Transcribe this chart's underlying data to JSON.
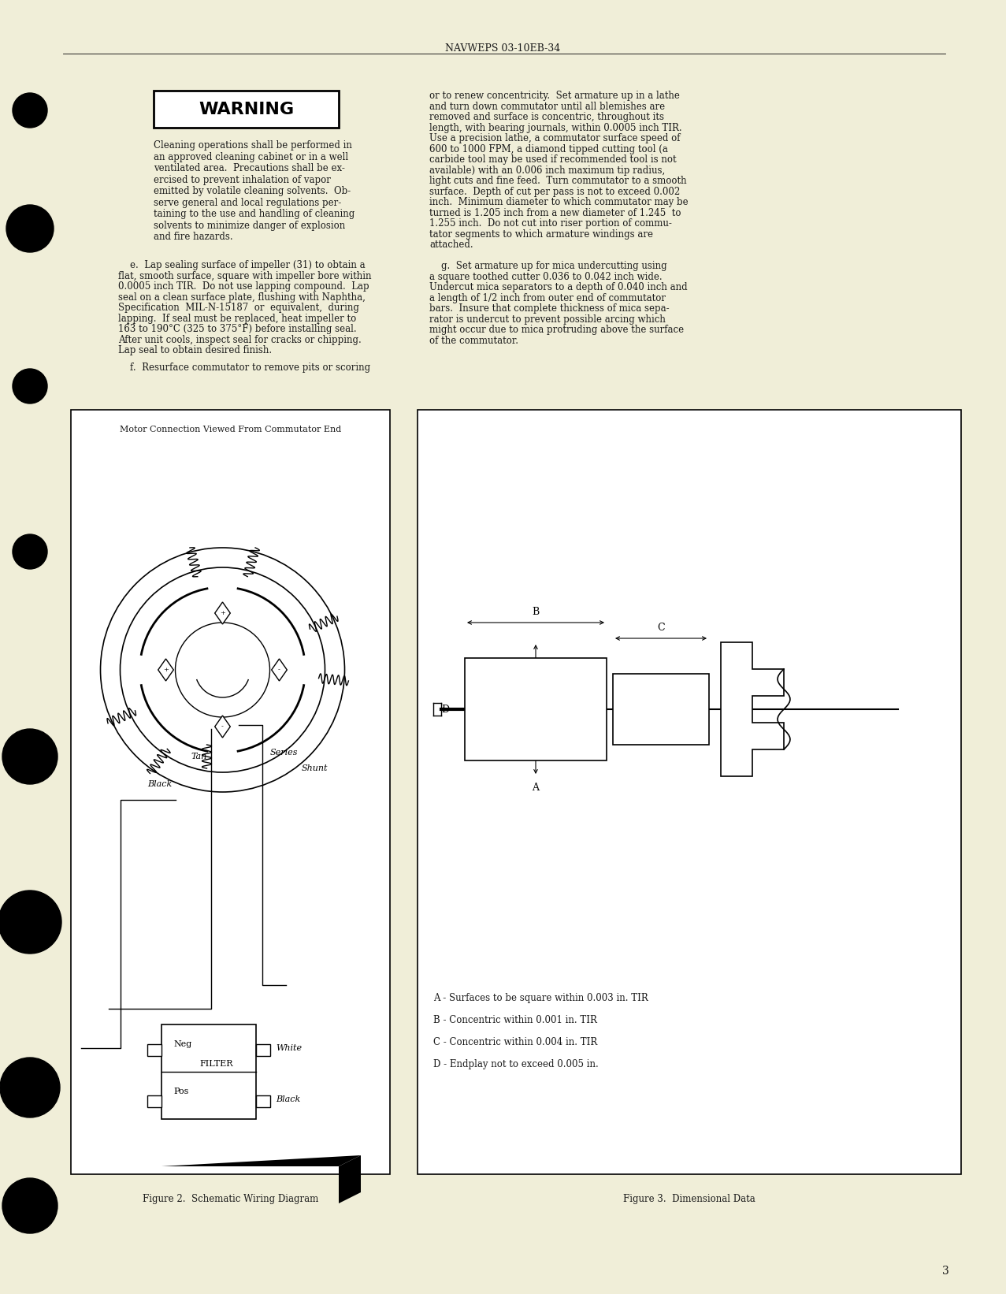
{
  "page_bg": "#f0eed8",
  "header_text": "NAVWEPS 03-10EB-34",
  "page_number": "3",
  "warning_title": "WARNING",
  "warning_text_lines": [
    "Cleaning operations shall be performed in",
    "an approved cleaning cabinet or in a well",
    "ventilated area.  Precautions shall be ex-",
    "ercised to prevent inhalation of vapor",
    "emitted by volatile cleaning solvents.  Ob-",
    "serve general and local regulations per-",
    "taining to the use and handling of cleaning",
    "solvents to minimize danger of explosion",
    "and fire hazards."
  ],
  "left_col_e_lines": [
    "    e.  Lap sealing surface of impeller (31) to obtain a",
    "flat, smooth surface, square with impeller bore within",
    "0.0005 inch TIR.  Do not use lapping compound.  Lap",
    "seal on a clean surface plate, flushing with Naphtha,",
    "Specification  MIL-N-15187  or  equivalent,  during",
    "lapping.  If seal must be replaced, heat impeller to",
    "163 to 190°C (325 to 375°F) before installing seal.",
    "After unit cools, inspect seal for cracks or chipping.",
    "Lap seal to obtain desired finish."
  ],
  "left_col_f_line": "    f.  Resurface commutator to remove pits or scoring",
  "right_col_lines": [
    "or to renew concentricity.  Set armature up in a lathe",
    "and turn down commutator until all blemishes are",
    "removed and surface is concentric, throughout its",
    "length, with bearing journals, within 0.0005 inch TIR.",
    "Use a precision lathe, a commutator surface speed of",
    "600 to 1000 FPM, a diamond tipped cutting tool (a",
    "carbide tool may be used if recommended tool is not",
    "available) with an 0.006 inch maximum tip radius,",
    "light cuts and fine feed.  Turn commutator to a smooth",
    "surface.  Depth of cut per pass is not to exceed 0.002",
    "inch.  Minimum diameter to which commutator may be",
    "turned is 1.205 inch from a new diameter of 1.245  to",
    "1.255 inch.  Do not cut into riser portion of commu-",
    "tator segments to which armature windings are",
    "attached.",
    "",
    "    g.  Set armature up for mica undercutting using",
    "a square toothed cutter 0.036 to 0.042 inch wide.",
    "Undercut mica separators to a depth of 0.040 inch and",
    "a length of 1/2 inch from outer end of commutator",
    "bars.  Insure that complete thickness of mica sepa-",
    "rator is undercut to prevent possible arcing which",
    "might occur due to mica protruding above the surface",
    "of the commutator."
  ],
  "fig2_caption": "Figure 2.  Schematic Wiring Diagram",
  "fig3_caption": "Figure 3.  Dimensional Data",
  "fig2_title": "Motor Connection Viewed From Commutator End",
  "fig3_labels": [
    "A - Surfaces to be square within 0.003 in. TIR",
    "B - Concentric within 0.001 in. TIR",
    "C - Concentric within 0.004 in. TIR",
    "D - Endplay not to exceed 0.005 in."
  ]
}
